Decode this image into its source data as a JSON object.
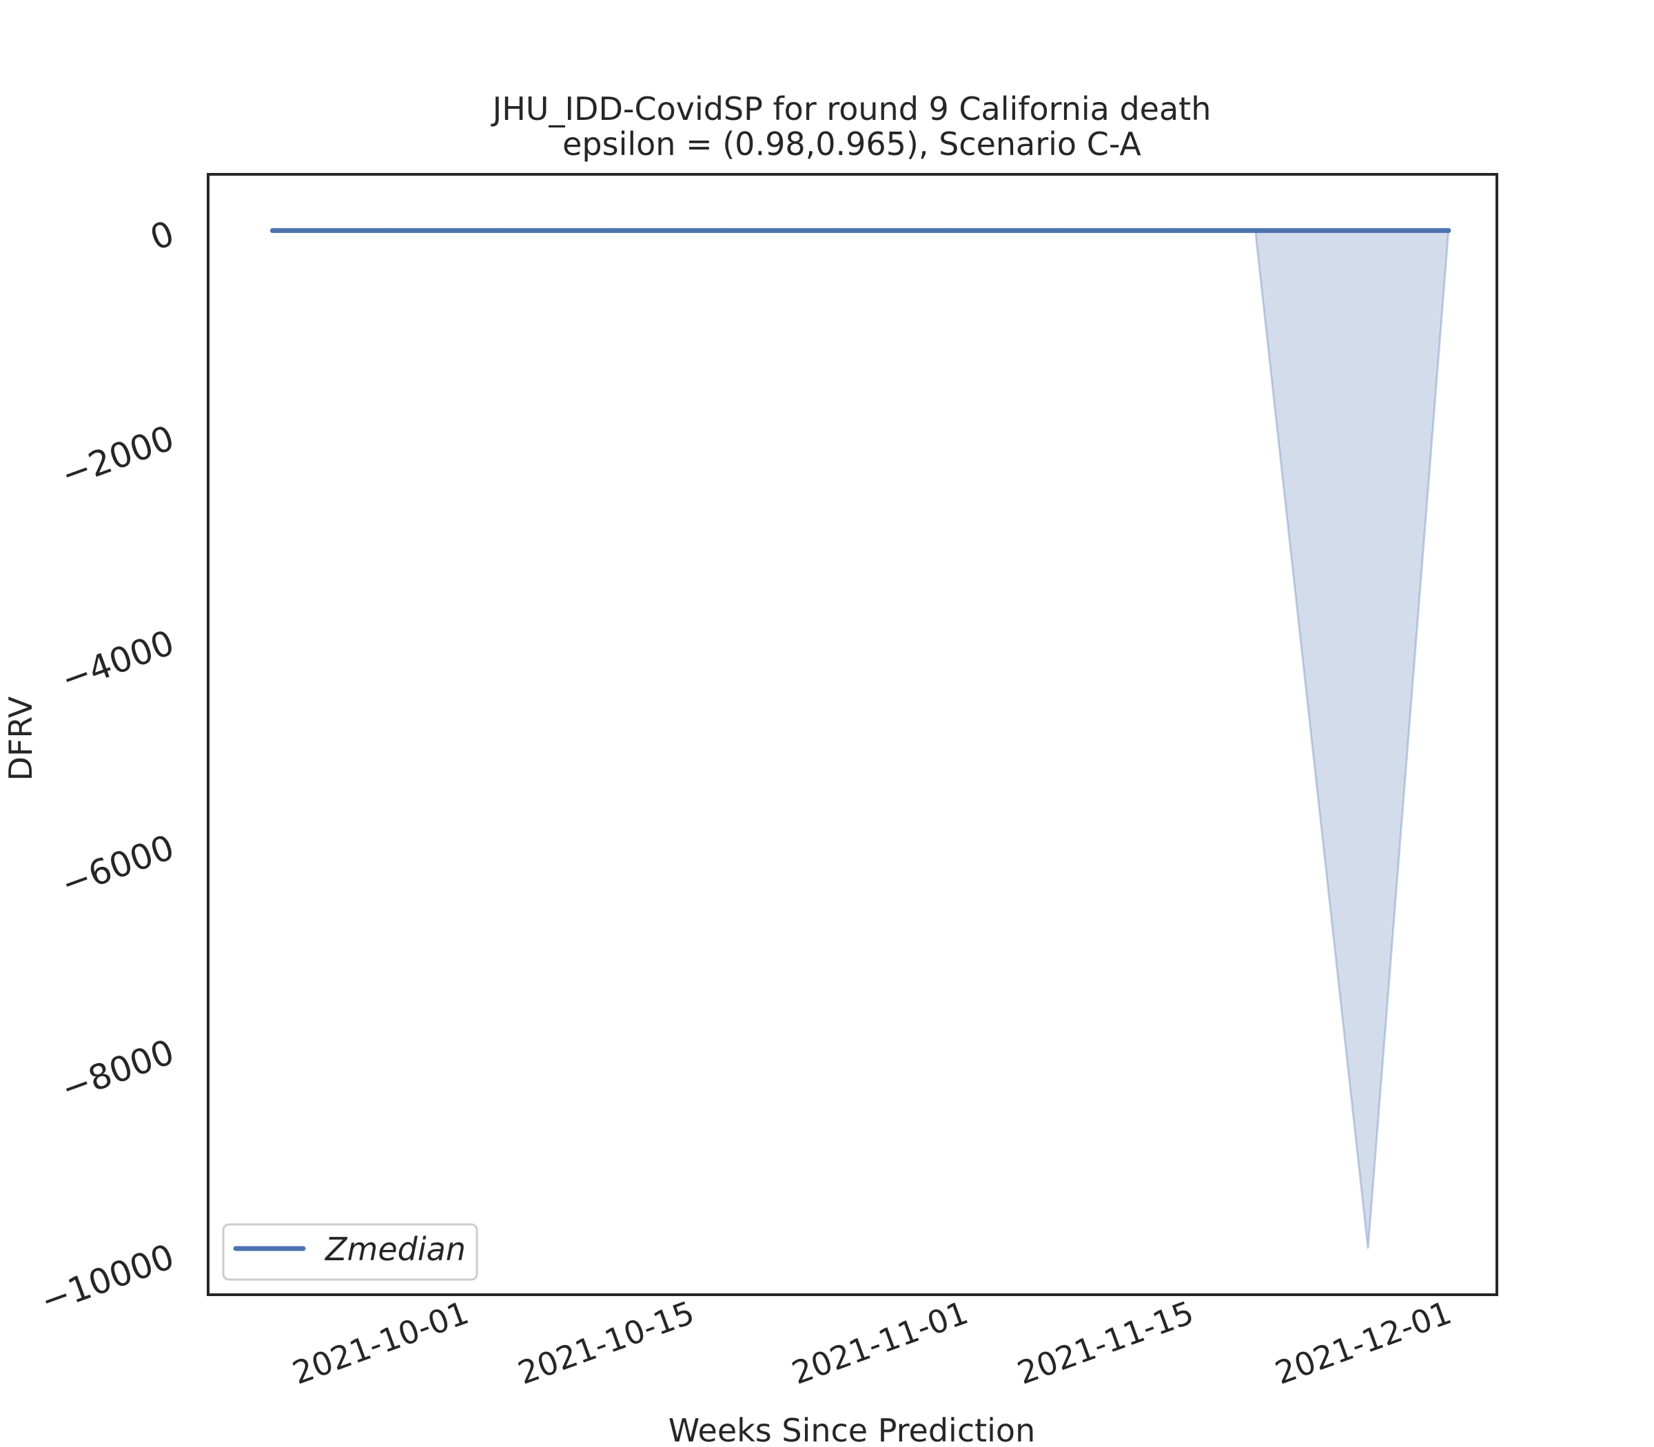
{
  "chart_data": {
    "type": "line",
    "title": "JHU_IDD-CovidSP for round 9 California  death",
    "subtitle": "epsilon = (0.98,0.965), Scenario C-A",
    "xlabel": "Weeks Since Prediction",
    "ylabel": "DFRV",
    "xlim": [
      "2021-09-17",
      "2021-12-06"
    ],
    "ylim": [
      -10400,
      550
    ],
    "x_ticks": [
      "2021-10-01",
      "2021-10-15",
      "2021-11-01",
      "2021-11-15",
      "2021-12-01"
    ],
    "y_ticks": [
      0,
      -2000,
      -4000,
      -6000,
      -8000,
      -10000
    ],
    "y_tick_labels": [
      "0",
      "−2000",
      "−4000",
      "−6000",
      "−8000",
      "−10000"
    ],
    "grid": false,
    "legend": {
      "position": "bottom-left",
      "entries": [
        "Zmedian"
      ]
    },
    "series": [
      {
        "name": "Zmedian",
        "color": "#4c72b0",
        "x": [
          "2021-09-21",
          "2021-09-28",
          "2021-10-05",
          "2021-10-12",
          "2021-10-19",
          "2021-10-26",
          "2021-11-02",
          "2021-11-09",
          "2021-11-16",
          "2021-11-23",
          "2021-11-30",
          "2021-12-03"
        ],
        "y": [
          0,
          0,
          0,
          0,
          0,
          0,
          0,
          0,
          0,
          0,
          0,
          0
        ]
      }
    ],
    "band": {
      "color": "#4c72b0",
      "opacity": 0.25,
      "x": [
        "2021-11-21",
        "2021-11-28",
        "2021-12-03"
      ],
      "lower": [
        0,
        -9950,
        0
      ],
      "upper": [
        0,
        0,
        0
      ]
    }
  }
}
